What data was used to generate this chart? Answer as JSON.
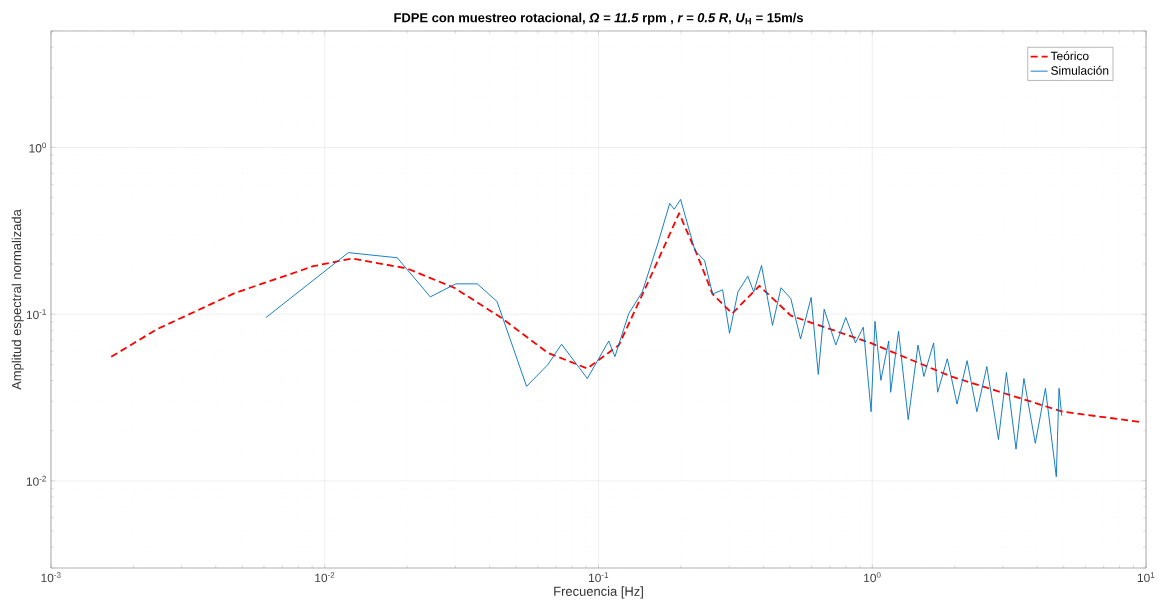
{
  "chart_data": {
    "type": "line",
    "title": "FDPE con muestreo rotacional, *Ω = 11.5* rpm , *r = 0.5 R*, *U*$_{H}$ = 15m/s",
    "xlabel": "Frecuencia [Hz]",
    "ylabel": "Amplitud espectral normalizada",
    "log": "xy",
    "grid": true,
    "legend": "top right",
    "xlim": [
      0.001,
      10
    ],
    "ylim": [
      0.003,
      5
    ],
    "xticks": [
      {
        "value": 0.001,
        "label": "10$^{-3}$"
      },
      {
        "value": 0.01,
        "label": "10$^{-2}$"
      },
      {
        "value": 0.1,
        "label": "10$^{-1}$"
      },
      {
        "value": 1,
        "label": "10$^{0}$"
      },
      {
        "value": 10,
        "label": "10$^{1}$"
      }
    ],
    "yticks": [
      {
        "value": 0.01,
        "label": "10$^{-2}$"
      },
      {
        "value": 0.1,
        "label": "10$^{-1}$"
      },
      {
        "value": 1,
        "label": "10$^{0}$"
      }
    ],
    "series": [
      {
        "name": "Teórico",
        "color": "#ff0000",
        "line_style": "dashed",
        "x": [
          0.00166,
          0.00243,
          0.0047,
          0.00908,
          0.0126,
          0.02,
          0.0297,
          0.044,
          0.0653,
          0.091,
          0.1187,
          0.154,
          0.197,
          0.229,
          0.261,
          0.308,
          0.387,
          0.504,
          0.99,
          1.94,
          4.96,
          9.44
        ],
        "values": [
          0.0555,
          0.081,
          0.134,
          0.194,
          0.216,
          0.188,
          0.144,
          0.0955,
          0.0586,
          0.0472,
          0.0653,
          0.164,
          0.403,
          0.228,
          0.132,
          0.101,
          0.148,
          0.098,
          0.067,
          0.0423,
          0.026,
          0.0226
        ]
      },
      {
        "name": "Simulación",
        "color": "#0072bd",
        "line_style": "solid",
        "x": [
          0.0061,
          0.0122,
          0.0184,
          0.0243,
          0.0301,
          0.0361,
          0.0426,
          0.0546,
          0.0653,
          0.0733,
          0.091,
          0.109,
          0.1148,
          0.129,
          0.1445,
          0.165,
          0.182,
          0.189,
          0.1995,
          0.225,
          0.244,
          0.261,
          0.284,
          0.301,
          0.323,
          0.351,
          0.369,
          0.394,
          0.432,
          0.464,
          0.504,
          0.547,
          0.598,
          0.635,
          0.667,
          0.736,
          0.8,
          0.868,
          0.927,
          0.99,
          1.023,
          1.075,
          1.148,
          1.167,
          1.247,
          1.353,
          1.469,
          1.543,
          1.675,
          1.733,
          1.88,
          2.04,
          2.22,
          2.41,
          2.62,
          2.89,
          3.09,
          3.35,
          3.58,
          3.94,
          4.29,
          4.7,
          4.81,
          4.92
        ],
        "values": [
          0.0955,
          0.234,
          0.218,
          0.127,
          0.152,
          0.152,
          0.119,
          0.0369,
          0.0498,
          0.066,
          0.0411,
          0.069,
          0.0556,
          0.101,
          0.136,
          0.268,
          0.462,
          0.426,
          0.488,
          0.241,
          0.21,
          0.132,
          0.14,
          0.0769,
          0.136,
          0.169,
          0.136,
          0.196,
          0.0857,
          0.144,
          0.124,
          0.071,
          0.126,
          0.0435,
          0.107,
          0.0653,
          0.0955,
          0.0672,
          0.0835,
          0.026,
          0.0905,
          0.0401,
          0.069,
          0.034,
          0.079,
          0.0233,
          0.0653,
          0.0423,
          0.0672,
          0.034,
          0.054,
          0.0289,
          0.0526,
          0.026,
          0.0485,
          0.0177,
          0.0447,
          0.0155,
          0.0411,
          0.0168,
          0.0359,
          0.0106,
          0.0359,
          0.0246
        ]
      }
    ]
  }
}
